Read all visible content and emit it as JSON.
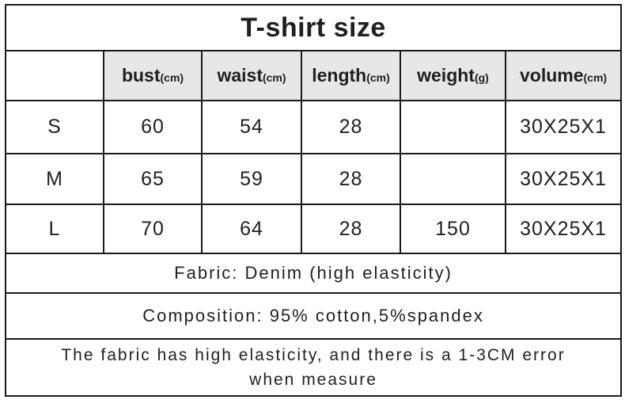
{
  "colors": {
    "page_bg": "#ffffff",
    "header_bg": "#e7e7e7",
    "border": "#1a1a1a",
    "text": "#1f1f1f"
  },
  "chart_data": {
    "type": "table",
    "title": "T-shirt size",
    "header": {
      "corner": "",
      "cols": [
        {
          "label": "bust",
          "unit": "(cm)"
        },
        {
          "label": "waist",
          "unit": "(cm)"
        },
        {
          "label": "length",
          "unit": "(cm)"
        },
        {
          "label": "weight",
          "unit": "(g)"
        },
        {
          "label": "volume",
          "unit": "(cm)"
        }
      ]
    },
    "rows": [
      {
        "size": "S",
        "bust": "60",
        "waist": "54",
        "length": "28",
        "weight": "",
        "volume": "30X25X1"
      },
      {
        "size": "M",
        "bust": "65",
        "waist": "59",
        "length": "28",
        "weight": "",
        "volume": "30X25X1"
      },
      {
        "size": "L",
        "bust": "70",
        "waist": "64",
        "length": "28",
        "weight": "150",
        "volume": "30X25X1"
      }
    ],
    "footer": {
      "fabric": "Fabric: Denim (high elasticity)",
      "composition": "Composition: 95% cotton,5%spandex",
      "note_line1": "The fabric has high elasticity,  and there is a 1-3CM error",
      "note_line2": "when measure"
    }
  }
}
